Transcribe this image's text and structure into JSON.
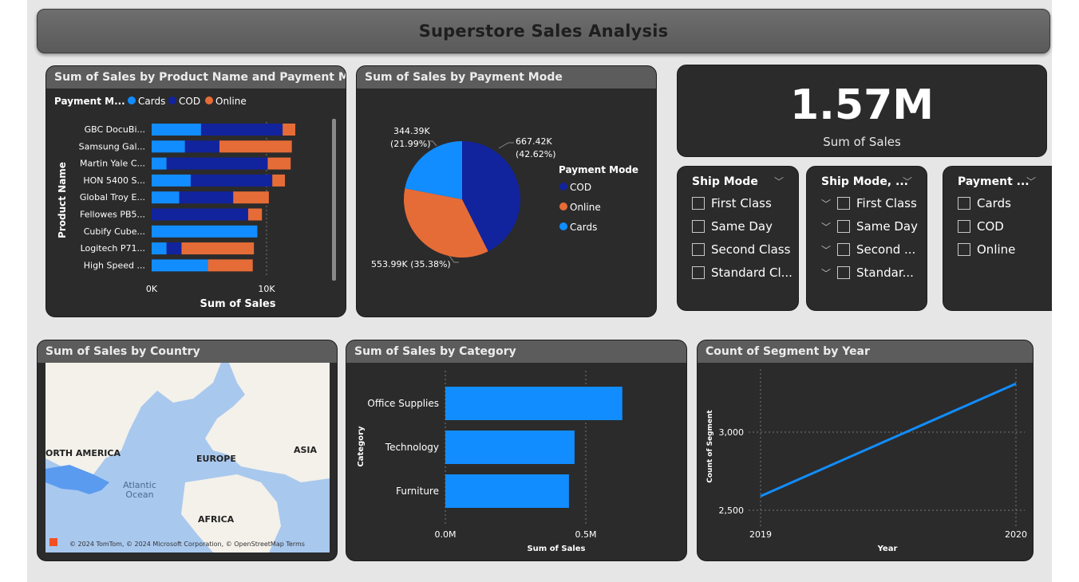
{
  "header": {
    "title": "Superstore Sales Analysis"
  },
  "colors": {
    "cards": "#118dff",
    "cod": "#12239e",
    "online": "#e66c37"
  },
  "product_panel": {
    "title": "Sum of Sales by Product Name and Payment Mode",
    "legend_title": "Payment M...",
    "legend": [
      "Cards",
      "COD",
      "Online"
    ],
    "y_label": "Product Name",
    "x_label": "Sum of Sales",
    "x_ticks": [
      "0K",
      "10K"
    ]
  },
  "pie_panel": {
    "title": "Sum of Sales by Payment Mode",
    "legend_title": "Payment Mode",
    "legend": [
      "COD",
      "Online",
      "Cards"
    ],
    "labels": {
      "cod_value": "667.42K",
      "cod_pct": "(42.62%)",
      "cards_value": "344.39K",
      "cards_pct": "(21.99%)",
      "online_label": "553.99K (35.38%)"
    }
  },
  "kpi": {
    "value": "1.57M",
    "label": "Sum of Sales"
  },
  "slicer_ship": {
    "title": "Ship Mode",
    "items": [
      "First Class",
      "Same Day",
      "Second Class",
      "Standard Cl..."
    ]
  },
  "slicer_ship2": {
    "title": "Ship Mode, ...",
    "items": [
      "First Class",
      "Same Day",
      "Second ...",
      "Standar..."
    ]
  },
  "slicer_payment": {
    "title": "Payment ...",
    "items": [
      "Cards",
      "COD",
      "Online"
    ]
  },
  "map_panel": {
    "title": "Sum of Sales by Country",
    "labels": [
      "ORTH AMERICA",
      "EUROPE",
      "ASIA",
      "Atlantic",
      "Ocean",
      "AFRICA"
    ],
    "attribution": "© 2024 TomTom, © 2024 Microsoft Corporation, © OpenStreetMap  Terms"
  },
  "category_panel": {
    "title": "Sum of Sales by Category",
    "y_label": "Category",
    "x_label": "Sum of Sales",
    "x_ticks": [
      "0.0M",
      "0.5M"
    ]
  },
  "segment_panel": {
    "title": "Count of Segment by Year",
    "y_label": "Count of Segment",
    "x_label": "Year"
  },
  "chart_data": [
    {
      "type": "bar",
      "stacked": true,
      "orientation": "horizontal",
      "title": "Sum of Sales by Product Name and Payment Mode",
      "categories": [
        "GBC DocuBi...",
        "Samsung Gal...",
        "Martin Yale C...",
        "HON 5400 S...",
        "Global Troy E...",
        "Fellowes PB5...",
        "Cubify Cube...",
        "Logitech P71...",
        "High Speed ..."
      ],
      "series": [
        {
          "name": "Cards",
          "values": [
            4300,
            2900,
            1300,
            3400,
            2400,
            0,
            9200,
            1300,
            4900
          ]
        },
        {
          "name": "COD",
          "values": [
            7100,
            3000,
            8800,
            7100,
            4700,
            8400,
            0,
            1300,
            0
          ]
        },
        {
          "name": "Online",
          "values": [
            1100,
            6300,
            2000,
            1100,
            3100,
            1200,
            0,
            6300,
            3900
          ]
        }
      ],
      "xlabel": "Sum of Sales",
      "ylabel": "Product Name",
      "xlim": [
        0,
        13000
      ]
    },
    {
      "type": "pie",
      "title": "Sum of Sales by Payment Mode",
      "categories": [
        "COD",
        "Online",
        "Cards"
      ],
      "values": [
        667420,
        553990,
        344390
      ],
      "percents": [
        42.62,
        35.38,
        21.99
      ]
    },
    {
      "type": "bar",
      "orientation": "horizontal",
      "title": "Sum of Sales by Category",
      "categories": [
        "Office Supplies",
        "Technology",
        "Furniture"
      ],
      "values": [
        630000,
        460000,
        440000
      ],
      "xlabel": "Sum of Sales",
      "ylabel": "Category",
      "xlim": [
        0,
        750000
      ]
    },
    {
      "type": "line",
      "title": "Count of Segment by Year",
      "x": [
        "2019",
        "2020"
      ],
      "values": [
        2590,
        3310
      ],
      "y_ticks": [
        "2,500",
        "3,000"
      ],
      "y_tick_values": [
        2500,
        3000
      ],
      "xlabel": "Year",
      "ylabel": "Count of Segment",
      "ylim": [
        2300,
        3400
      ]
    }
  ]
}
